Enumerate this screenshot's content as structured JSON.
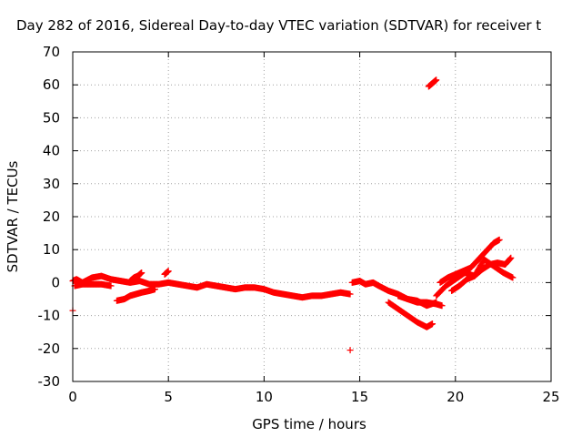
{
  "chart_data": {
    "type": "scatter",
    "title": "Day 282 of 2016, Sidereal Day-to-day VTEC variation (SDTVAR) for receiver t",
    "xlabel": "GPS time / hours",
    "ylabel": "SDTVAR / TECUs",
    "xlim": [
      0,
      25
    ],
    "ylim": [
      -30,
      70
    ],
    "xticks": [
      0,
      5,
      10,
      15,
      20,
      25
    ],
    "yticks": [
      -30,
      -20,
      -10,
      0,
      10,
      20,
      30,
      40,
      50,
      60,
      70
    ],
    "grid": true,
    "marker_color": "#ff0000",
    "series": [
      {
        "x": [
          0.0,
          0.2,
          0.5,
          1.0,
          1.5,
          2.0,
          2.5,
          3.0,
          3.5,
          4.0,
          4.5,
          5.0,
          5.5,
          6.0,
          6.5,
          7.0,
          7.5,
          8.0,
          8.5,
          9.0,
          9.5,
          10.0,
          10.5,
          11.0,
          11.5,
          12.0,
          12.5,
          13.0,
          13.5,
          14.0,
          14.5
        ],
        "y": [
          0.5,
          1.0,
          0.0,
          1.5,
          2.0,
          1.0,
          0.5,
          0.0,
          0.5,
          -0.5,
          -0.5,
          0.0,
          -0.5,
          -1.0,
          -1.5,
          -0.5,
          -1.0,
          -1.5,
          -2.0,
          -1.5,
          -1.5,
          -2.0,
          -3.0,
          -3.5,
          -4.0,
          -4.5,
          -4.0,
          -4.0,
          -3.5,
          -3.0,
          -3.5
        ]
      },
      {
        "x": [
          0.1,
          0.5,
          1.0,
          1.5,
          2.0
        ],
        "y": [
          -1.0,
          -0.5,
          -0.5,
          -0.5,
          -1.0
        ]
      },
      {
        "x": [
          2.3,
          2.7,
          3.0,
          3.3,
          3.6,
          4.0,
          4.3
        ],
        "y": [
          -5.5,
          -5.0,
          -4.0,
          -3.5,
          -3.0,
          -2.5,
          -2.0
        ]
      },
      {
        "x": [
          3.0,
          3.2,
          3.4,
          3.6
        ],
        "y": [
          0.5,
          1.5,
          2.0,
          3.0
        ]
      },
      {
        "x": [
          4.8,
          5.0
        ],
        "y": [
          2.5,
          3.5
        ]
      },
      {
        "x": [
          0.0
        ],
        "y": [
          -8.5
        ]
      },
      {
        "x": [
          14.6,
          15.0,
          15.3,
          15.7,
          16.0,
          16.5,
          17.0,
          17.5,
          18.0,
          18.5,
          19.0,
          19.3
        ],
        "y": [
          0.0,
          0.5,
          -0.5,
          0.0,
          -1.0,
          -2.5,
          -3.5,
          -5.0,
          -6.0,
          -6.0,
          -6.5,
          -7.0
        ]
      },
      {
        "x": [
          16.5,
          17.0,
          17.5,
          18.0,
          18.5,
          18.8
        ],
        "y": [
          -6.0,
          -8.0,
          -10.0,
          -12.0,
          -13.5,
          -12.5
        ]
      },
      {
        "x": [
          17.0,
          17.5,
          18.0,
          18.5,
          19.0
        ],
        "y": [
          -4.0,
          -5.0,
          -5.5,
          -7.0,
          -6.0
        ]
      },
      {
        "x": [
          19.0,
          19.5,
          20.0,
          20.5,
          21.0,
          21.5,
          22.0,
          22.5,
          23.0
        ],
        "y": [
          -4.0,
          -1.0,
          1.0,
          3.0,
          2.0,
          7.0,
          5.0,
          3.0,
          1.5
        ]
      },
      {
        "x": [
          19.2,
          19.6,
          20.0,
          20.4,
          20.8,
          21.2,
          21.6,
          22.0,
          22.3
        ],
        "y": [
          0.0,
          1.5,
          2.5,
          3.5,
          4.5,
          7.0,
          9.5,
          12.0,
          13.0
        ]
      },
      {
        "x": [
          19.8,
          20.2,
          20.6,
          21.0,
          21.4,
          21.8,
          22.2,
          22.6,
          22.9
        ],
        "y": [
          -2.5,
          -1.0,
          1.0,
          2.0,
          4.0,
          5.5,
          6.0,
          5.5,
          7.5
        ]
      },
      {
        "x": [
          14.5
        ],
        "y": [
          -20.5
        ]
      },
      {
        "x": [
          18.6,
          18.8,
          19.0
        ],
        "y": [
          59.5,
          60.5,
          61.5
        ]
      }
    ]
  }
}
